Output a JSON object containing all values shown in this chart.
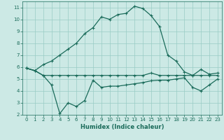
{
  "title": "",
  "xlabel": "Humidex (Indice chaleur)",
  "bg_color": "#cce9e5",
  "grid_color": "#99ccc5",
  "line_color": "#1a6b5a",
  "xlim": [
    -0.5,
    23.5
  ],
  "ylim": [
    2,
    11.5
  ],
  "yticks": [
    2,
    3,
    4,
    5,
    6,
    7,
    8,
    9,
    10,
    11
  ],
  "xticks": [
    0,
    1,
    2,
    3,
    4,
    5,
    6,
    7,
    8,
    9,
    10,
    11,
    12,
    13,
    14,
    15,
    16,
    17,
    18,
    19,
    20,
    21,
    22,
    23
  ],
  "line1_x": [
    0,
    1,
    2,
    3,
    4,
    5,
    6,
    7,
    8,
    9,
    10,
    11,
    12,
    13,
    14,
    15,
    16,
    17,
    18,
    19,
    20,
    21,
    22,
    23
  ],
  "line1_y": [
    5.9,
    5.7,
    5.3,
    5.3,
    5.3,
    5.3,
    5.3,
    5.3,
    5.3,
    5.3,
    5.3,
    5.3,
    5.3,
    5.3,
    5.3,
    5.5,
    5.3,
    5.3,
    5.3,
    5.3,
    5.3,
    5.3,
    5.3,
    5.3
  ],
  "line2_x": [
    0,
    1,
    2,
    3,
    4,
    5,
    6,
    7,
    8,
    9,
    10,
    11,
    12,
    13,
    14,
    15,
    16,
    17,
    18,
    19,
    20,
    21,
    22,
    23
  ],
  "line2_y": [
    5.9,
    5.7,
    5.3,
    4.5,
    2.1,
    3.0,
    2.7,
    3.2,
    4.9,
    4.3,
    4.4,
    4.4,
    4.5,
    4.6,
    4.7,
    4.85,
    4.9,
    4.9,
    5.0,
    5.1,
    4.3,
    4.0,
    4.5,
    5.0
  ],
  "line3_x": [
    0,
    1,
    2,
    3,
    4,
    5,
    6,
    7,
    8,
    9,
    10,
    11,
    12,
    13,
    14,
    15,
    16,
    17,
    18,
    19,
    20,
    21,
    22,
    23
  ],
  "line3_y": [
    5.9,
    5.7,
    6.2,
    6.5,
    7.0,
    7.5,
    8.0,
    8.8,
    9.3,
    10.2,
    10.0,
    10.4,
    10.5,
    11.1,
    10.9,
    10.3,
    9.4,
    7.0,
    6.5,
    5.6,
    5.3,
    5.8,
    5.4,
    5.5
  ],
  "tick_labelsize": 5,
  "xlabel_fontsize": 6
}
